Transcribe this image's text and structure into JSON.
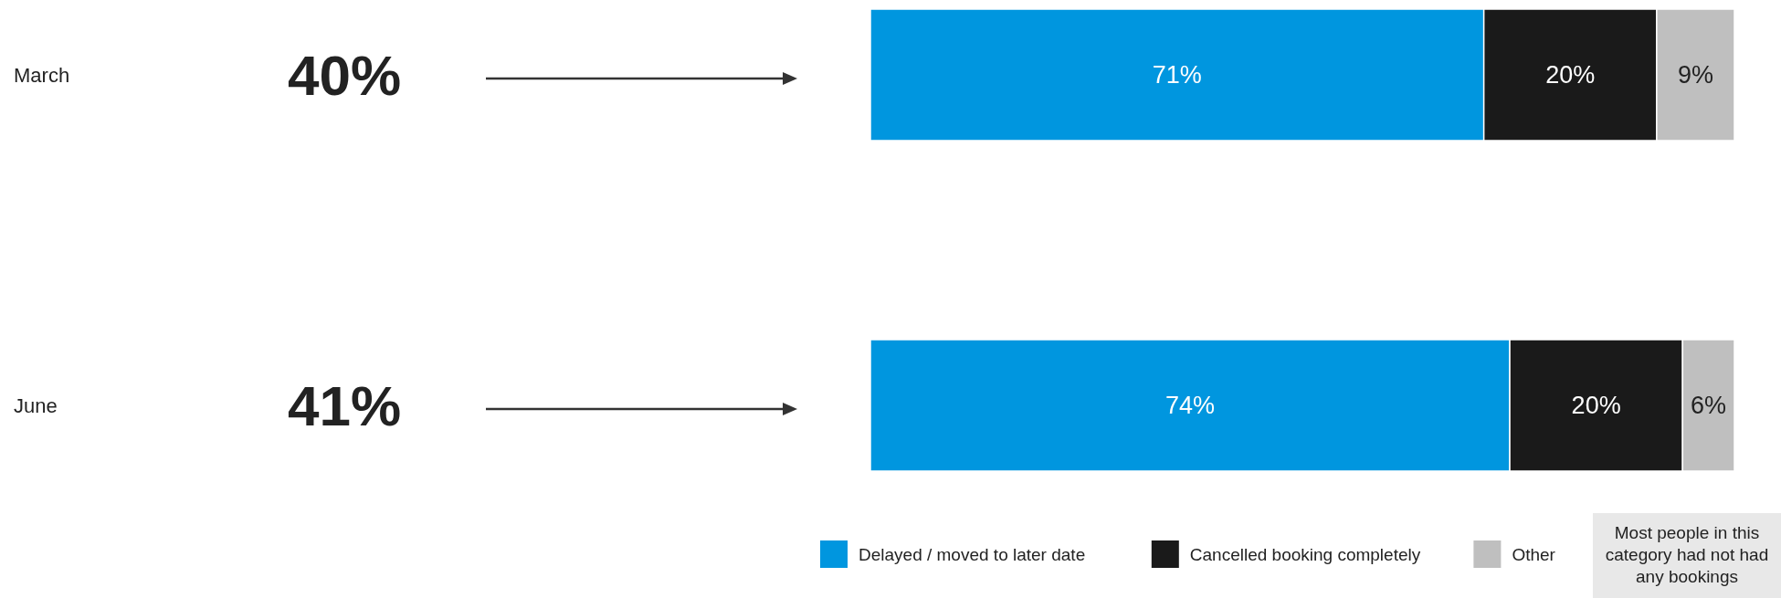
{
  "chart_data": {
    "type": "bar",
    "orientation": "horizontal",
    "stacked": true,
    "categories": [
      "March",
      "June"
    ],
    "series": [
      {
        "name": "Delayed / moved to later date",
        "color": "#0096df",
        "values": [
          71,
          74
        ],
        "value_labels": [
          "71%",
          "74%"
        ]
      },
      {
        "name": "Cancelled booking completely",
        "color": "#1a1a1a",
        "values": [
          20,
          20
        ],
        "value_labels": [
          "20%",
          "20%"
        ]
      },
      {
        "name": "Other",
        "color": "#bfbfbf",
        "values": [
          9,
          6
        ],
        "value_labels": [
          "9%",
          "6%"
        ]
      }
    ],
    "xlim": [
      0,
      100
    ],
    "tick_labels": false,
    "legend": "bottom",
    "grid": false,
    "annotations": [
      "40%",
      "41%",
      "Most people in this category had not had any bookings"
    ]
  }
}
